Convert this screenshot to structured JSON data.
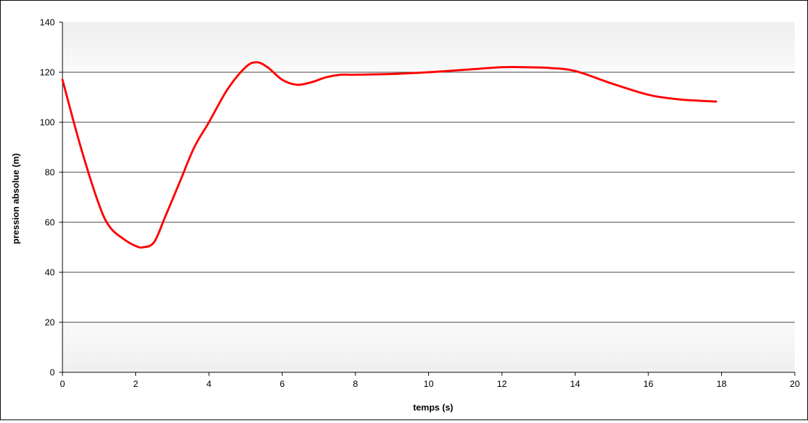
{
  "chart_data": {
    "type": "line",
    "title": "",
    "xlabel": "temps (s)",
    "ylabel": "pression absolue (m)",
    "xlim": [
      0,
      20
    ],
    "ylim": [
      0,
      140
    ],
    "x_ticks": [
      0,
      2,
      4,
      6,
      8,
      10,
      12,
      14,
      16,
      18,
      20
    ],
    "y_ticks": [
      0,
      20,
      40,
      60,
      80,
      100,
      120,
      140
    ],
    "grid": "horizontal",
    "legend": "none",
    "series": [
      {
        "color": "#ff0000",
        "x": [
          0,
          0.5,
          1.0,
          1.3,
          1.7,
          2.0,
          2.2,
          2.5,
          2.8,
          3.2,
          3.6,
          4.0,
          4.5,
          5.0,
          5.3,
          5.6,
          6.0,
          6.4,
          6.8,
          7.2,
          7.6,
          8.0,
          9.0,
          10.0,
          11.0,
          12.0,
          12.6,
          13.3,
          14.0,
          15.0,
          16.0,
          16.8,
          17.4,
          17.85
        ],
        "y": [
          117,
          90,
          67,
          58,
          53,
          50.5,
          50,
          52,
          62,
          76,
          90,
          100,
          113,
          122,
          124,
          122,
          117,
          115,
          116,
          118,
          119,
          119,
          119.3,
          120,
          121,
          122,
          122,
          121.7,
          120.5,
          115.5,
          111,
          109.2,
          108.6,
          108.3
        ]
      }
    ]
  },
  "style": {
    "band_color": "#f1f1f1",
    "plot_bg": "#ffffff",
    "grid_color": "#000000",
    "line_color": "#ff0000"
  }
}
